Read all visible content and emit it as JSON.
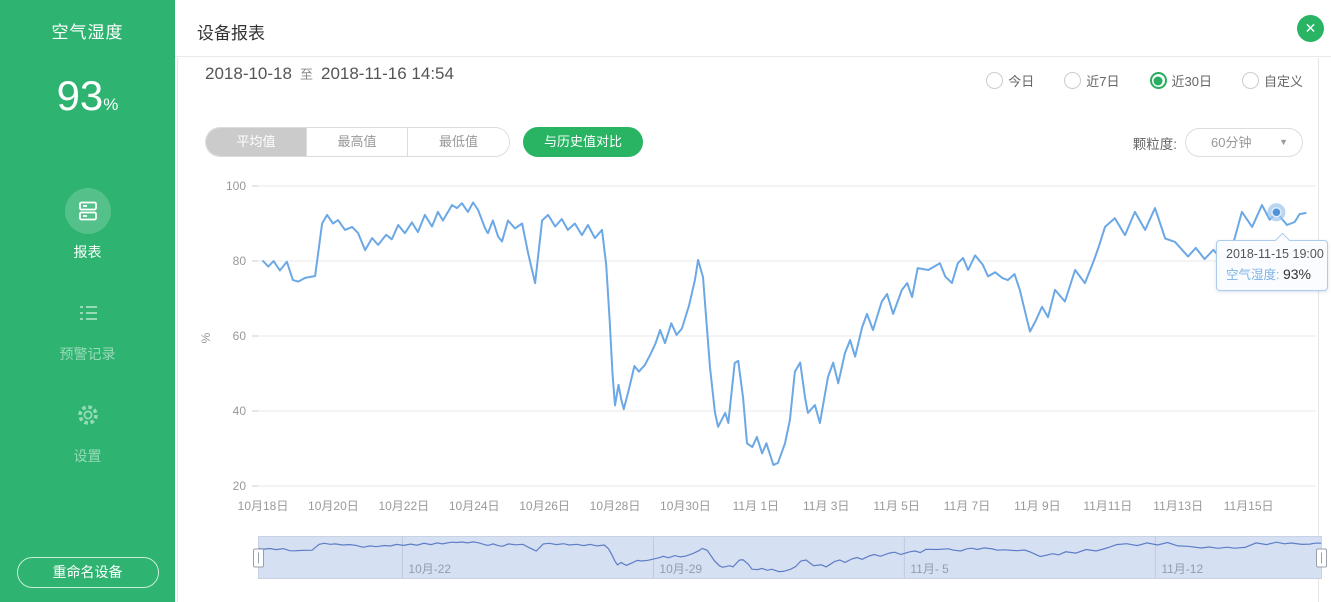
{
  "sidebar": {
    "device_name": "空气湿度",
    "value": "93",
    "value_unit": "%",
    "menu": [
      {
        "label": "报表",
        "icon": "report-icon",
        "active": true
      },
      {
        "label": "预警记录",
        "icon": "alert-records-icon",
        "active": false
      },
      {
        "label": "设置",
        "icon": "settings-icon",
        "active": false
      }
    ],
    "rename_button": "重命名设备"
  },
  "header": {
    "title": "设备报表"
  },
  "icons": {
    "close": "✕",
    "caret": "▼"
  },
  "toolbar": {
    "date_from": "2018-10-18",
    "date_separator": "至",
    "date_to": "2018-11-16 14:54",
    "range_options": [
      {
        "label": "今日",
        "selected": false
      },
      {
        "label": "近7日",
        "selected": false
      },
      {
        "label": "近30日",
        "selected": true
      },
      {
        "label": "自定义",
        "selected": false
      }
    ],
    "metric_tabs": [
      {
        "label": "平均值",
        "selected": true
      },
      {
        "label": "最高值",
        "selected": false
      },
      {
        "label": "最低值",
        "selected": false
      }
    ],
    "compare_button": "与历史值对比",
    "granularity_label": "颗粒度:",
    "granularity_value": "60分钟"
  },
  "tooltip": {
    "time": "2018-11-15 19:00",
    "series": "空气湿度",
    "separator": ": ",
    "value": "93%"
  },
  "colors": {
    "brand_green": "#2eb470",
    "button_green": "#28b463",
    "line_blue": "#6ba8e5",
    "marker_blue": "#4f92d8",
    "navigator_fill": "#d6e0f3",
    "navigator_line": "#5d7ec6",
    "grid_gray": "#e8e8e8",
    "axis_text": "#999999"
  },
  "chart_data": {
    "type": "line",
    "series_name": "空气湿度",
    "ylabel": "%",
    "ylim": [
      20,
      100
    ],
    "y_ticks": [
      20,
      40,
      60,
      80,
      100
    ],
    "grid": "horizontal-only",
    "legend": "none",
    "x_unit": "days since 2018-10-18 00:00",
    "x_ticks": [
      {
        "day": 0,
        "label": "10月18日"
      },
      {
        "day": 2,
        "label": "10月20日"
      },
      {
        "day": 4,
        "label": "10月22日"
      },
      {
        "day": 6,
        "label": "10月24日"
      },
      {
        "day": 8,
        "label": "10月26日"
      },
      {
        "day": 10,
        "label": "10月28日"
      },
      {
        "day": 12,
        "label": "10月30日"
      },
      {
        "day": 14,
        "label": "11月 1日"
      },
      {
        "day": 16,
        "label": "11月 3日"
      },
      {
        "day": 18,
        "label": "11月 5日"
      },
      {
        "day": 20,
        "label": "11月 7日"
      },
      {
        "day": 22,
        "label": "11月 9日"
      },
      {
        "day": 24,
        "label": "11月11日"
      },
      {
        "day": 26,
        "label": "11月13日"
      },
      {
        "day": 28,
        "label": "11月15日"
      }
    ],
    "points_day_value": [
      [
        0,
        80
      ],
      [
        0.15,
        78.5
      ],
      [
        0.3,
        80
      ],
      [
        0.48,
        77.5
      ],
      [
        0.68,
        79.8
      ],
      [
        0.85,
        74.9
      ],
      [
        1.0,
        74.5
      ],
      [
        1.2,
        75.5
      ],
      [
        1.48,
        76
      ],
      [
        1.68,
        90
      ],
      [
        1.82,
        92.3
      ],
      [
        1.99,
        90
      ],
      [
        2.13,
        90.9
      ],
      [
        2.33,
        88.3
      ],
      [
        2.53,
        89.1
      ],
      [
        2.7,
        87.5
      ],
      [
        2.9,
        82.9
      ],
      [
        3.1,
        86.1
      ],
      [
        3.27,
        84.3
      ],
      [
        3.5,
        87
      ],
      [
        3.66,
        85.8
      ],
      [
        3.84,
        89.6
      ],
      [
        4.03,
        87.4
      ],
      [
        4.23,
        90.3
      ],
      [
        4.4,
        87.7
      ],
      [
        4.6,
        92.3
      ],
      [
        4.8,
        89.2
      ],
      [
        4.97,
        93.1
      ],
      [
        5.11,
        90.8
      ],
      [
        5.37,
        94.9
      ],
      [
        5.51,
        94.1
      ],
      [
        5.65,
        95.4
      ],
      [
        5.82,
        93.1
      ],
      [
        5.97,
        95.6
      ],
      [
        6.11,
        93.6
      ],
      [
        6.31,
        88.7
      ],
      [
        6.39,
        87.4
      ],
      [
        6.53,
        90.8
      ],
      [
        6.68,
        86.5
      ],
      [
        6.79,
        85.2
      ],
      [
        6.96,
        90.8
      ],
      [
        7.16,
        88.7
      ],
      [
        7.36,
        90
      ],
      [
        7.53,
        82.1
      ],
      [
        7.73,
        74.1
      ],
      [
        7.93,
        90.8
      ],
      [
        8.1,
        92.3
      ],
      [
        8.3,
        89.2
      ],
      [
        8.49,
        91.2
      ],
      [
        8.66,
        88.3
      ],
      [
        8.86,
        90
      ],
      [
        9.06,
        86.9
      ],
      [
        9.23,
        89.6
      ],
      [
        9.43,
        86.1
      ],
      [
        9.63,
        88.3
      ],
      [
        9.75,
        79
      ],
      [
        9.85,
        64
      ],
      [
        9.93,
        50
      ],
      [
        10.0,
        41.5
      ],
      [
        10.1,
        47
      ],
      [
        10.18,
        43
      ],
      [
        10.25,
        40.5
      ],
      [
        10.4,
        46
      ],
      [
        10.55,
        52
      ],
      [
        10.68,
        50.5
      ],
      [
        10.85,
        52.3
      ],
      [
        11.0,
        55
      ],
      [
        11.15,
        58
      ],
      [
        11.28,
        61.6
      ],
      [
        11.42,
        58.1
      ],
      [
        11.6,
        63.4
      ],
      [
        11.75,
        60.3
      ],
      [
        11.9,
        62
      ],
      [
        12.1,
        68
      ],
      [
        12.27,
        74.9
      ],
      [
        12.36,
        80.3
      ],
      [
        12.5,
        75.7
      ],
      [
        12.7,
        51.6
      ],
      [
        12.84,
        39.5
      ],
      [
        12.93,
        35.8
      ],
      [
        13.13,
        39.5
      ],
      [
        13.22,
        36.8
      ],
      [
        13.4,
        52.8
      ],
      [
        13.5,
        53.4
      ],
      [
        13.64,
        43.5
      ],
      [
        13.75,
        31.4
      ],
      [
        13.9,
        30.4
      ],
      [
        14.03,
        33.1
      ],
      [
        14.18,
        28.7
      ],
      [
        14.3,
        31.4
      ],
      [
        14.5,
        25.6
      ],
      [
        14.63,
        26.2
      ],
      [
        14.83,
        31.4
      ],
      [
        14.97,
        37.6
      ],
      [
        15.11,
        50.5
      ],
      [
        15.26,
        52.9
      ],
      [
        15.4,
        43.5
      ],
      [
        15.48,
        39.5
      ],
      [
        15.68,
        41.6
      ],
      [
        15.82,
        36.8
      ],
      [
        16.05,
        49.1
      ],
      [
        16.2,
        52.9
      ],
      [
        16.34,
        47.4
      ],
      [
        16.53,
        55.4
      ],
      [
        16.68,
        58.9
      ],
      [
        16.82,
        54.5
      ],
      [
        17.02,
        62.3
      ],
      [
        17.16,
        65.9
      ],
      [
        17.33,
        61.6
      ],
      [
        17.58,
        69.2
      ],
      [
        17.73,
        71.2
      ],
      [
        17.9,
        65.9
      ],
      [
        18.15,
        72.3
      ],
      [
        18.3,
        74.1
      ],
      [
        18.44,
        70.4
      ],
      [
        18.6,
        78.1
      ],
      [
        18.9,
        77.6
      ],
      [
        19.23,
        79.4
      ],
      [
        19.38,
        75.9
      ],
      [
        19.57,
        74.1
      ],
      [
        19.74,
        79.4
      ],
      [
        19.89,
        80.8
      ],
      [
        20.03,
        77.6
      ],
      [
        20.23,
        81.5
      ],
      [
        20.45,
        79
      ],
      [
        20.6,
        75.9
      ],
      [
        20.8,
        77
      ],
      [
        21.0,
        75.5
      ],
      [
        21.16,
        74.9
      ],
      [
        21.35,
        76.5
      ],
      [
        21.5,
        72.3
      ],
      [
        21.73,
        63.4
      ],
      [
        21.79,
        61.2
      ],
      [
        21.95,
        64
      ],
      [
        22.13,
        67.8
      ],
      [
        22.3,
        65
      ],
      [
        22.5,
        72.3
      ],
      [
        22.78,
        69.2
      ],
      [
        23.07,
        77.6
      ],
      [
        23.35,
        74.1
      ],
      [
        23.6,
        80
      ],
      [
        23.75,
        84
      ],
      [
        23.92,
        89.1
      ],
      [
        24.2,
        91.4
      ],
      [
        24.49,
        86.9
      ],
      [
        24.77,
        93.1
      ],
      [
        25.06,
        88.3
      ],
      [
        25.34,
        94.1
      ],
      [
        25.63,
        86
      ],
      [
        25.91,
        85.1
      ],
      [
        26.28,
        81.2
      ],
      [
        26.5,
        83.5
      ],
      [
        26.75,
        80.5
      ],
      [
        27.0,
        83
      ],
      [
        27.2,
        80.8
      ],
      [
        27.5,
        82.5
      ],
      [
        27.81,
        93.1
      ],
      [
        28.1,
        89.1
      ],
      [
        28.38,
        94.9
      ],
      [
        28.6,
        91
      ],
      [
        28.79,
        93
      ],
      [
        29.09,
        89.6
      ],
      [
        29.31,
        90.4
      ],
      [
        29.45,
        92.5
      ],
      [
        29.62,
        92.8
      ]
    ],
    "highlight": {
      "day": 28.79,
      "value": 93,
      "time_label": "2018-11-15 19:00"
    },
    "navigator": {
      "range_labels": [
        {
          "day": 4,
          "label": "10月-22"
        },
        {
          "day": 11,
          "label": "10月-29"
        },
        {
          "day": 18,
          "label": "11月- 5"
        },
        {
          "day": 25,
          "label": "11月-12"
        }
      ],
      "window": "full-range-selected"
    }
  }
}
